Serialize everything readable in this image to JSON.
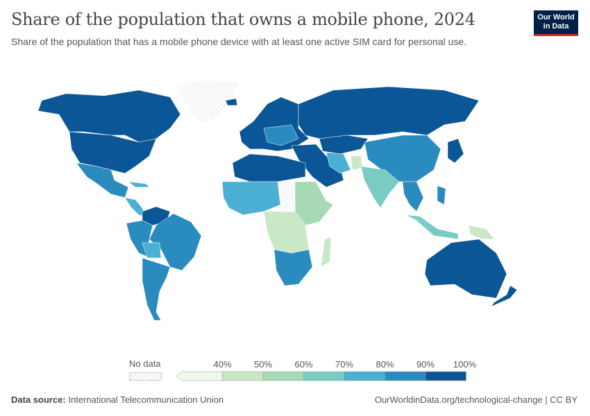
{
  "header": {
    "title": "Share of the population that owns a mobile phone, 2024",
    "subtitle": "Share of the population that has a mobile phone device with at least one active SIM card for personal use.",
    "logo_text": "Our World in Data"
  },
  "legend": {
    "no_data_label": "No data",
    "bins": [
      {
        "label": "",
        "color": "#eef7e9"
      },
      {
        "label": "40%",
        "color": "#c9e8c6"
      },
      {
        "label": "50%",
        "color": "#a5dab5"
      },
      {
        "label": "60%",
        "color": "#79cbc4"
      },
      {
        "label": "70%",
        "color": "#4bb0d3"
      },
      {
        "label": "80%",
        "color": "#2a8bbf"
      },
      {
        "label": "90%",
        "color": "#0b5697"
      }
    ],
    "end_label": "100%"
  },
  "colors": {
    "no_data": "#eeeeee",
    "border": "#ffffff"
  },
  "footer": {
    "source_label": "Data source:",
    "source": "International Telecommunication Union",
    "url": "OurWorldinData.org/technological-change | CC BY"
  }
}
